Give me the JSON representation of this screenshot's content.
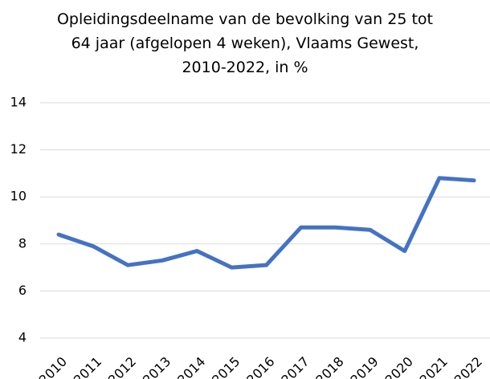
{
  "chart_data": {
    "type": "line",
    "title": [
      "Opleidingsdeelname van de bevolking van 25 tot",
      "64 jaar (afgelopen 4 weken), Vlaams Gewest,",
      "2010-2022, in %"
    ],
    "categories": [
      "2010",
      "2011",
      "2012",
      "2013",
      "2014",
      "2015",
      "2016",
      "2017",
      "2018",
      "2019",
      "2020",
      "2021",
      "2022"
    ],
    "series": [
      {
        "color": "#4472c4",
        "values": [
          8.4,
          7.9,
          7.1,
          7.3,
          7.7,
          7.0,
          7.1,
          8.7,
          8.7,
          8.6,
          7.7,
          10.8,
          10.7
        ]
      }
    ],
    "ylim": [
      4,
      14
    ],
    "yticks": [
      4,
      6,
      8,
      10,
      12,
      14
    ],
    "grid": true
  }
}
